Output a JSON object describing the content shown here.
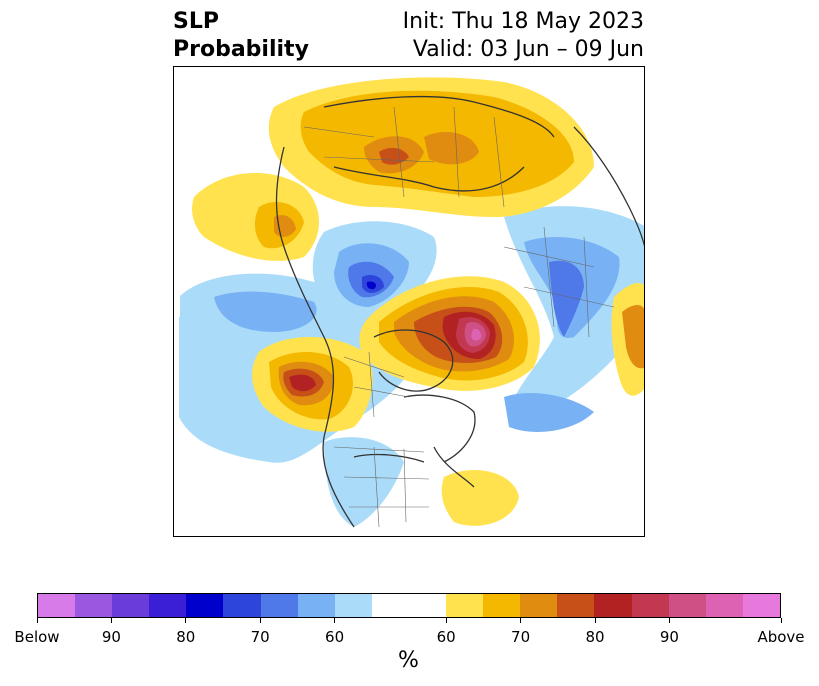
{
  "title": {
    "left_line1": "SLP",
    "left_line2": "Probability",
    "right_line1": "Init: Thu 18 May 2023",
    "right_line2": "Valid: 03 Jun – 09 Jun"
  },
  "colorbar": {
    "colors": [
      "#d67be8",
      "#9a57e0",
      "#6a3ddb",
      "#3b1fd6",
      "#0000cd",
      "#2e45dc",
      "#4f78e8",
      "#78b2f4",
      "#aadcfa",
      "#ffffff",
      "#ffffff",
      "#ffe24d",
      "#f4b800",
      "#e08c10",
      "#c65018",
      "#b22222",
      "#c23850",
      "#cf5085",
      "#de62b3",
      "#e879dc"
    ],
    "tick_labels": [
      "Below",
      "90",
      "80",
      "70",
      "60",
      "60",
      "70",
      "80",
      "90",
      "Above"
    ],
    "unit": "%"
  }
}
